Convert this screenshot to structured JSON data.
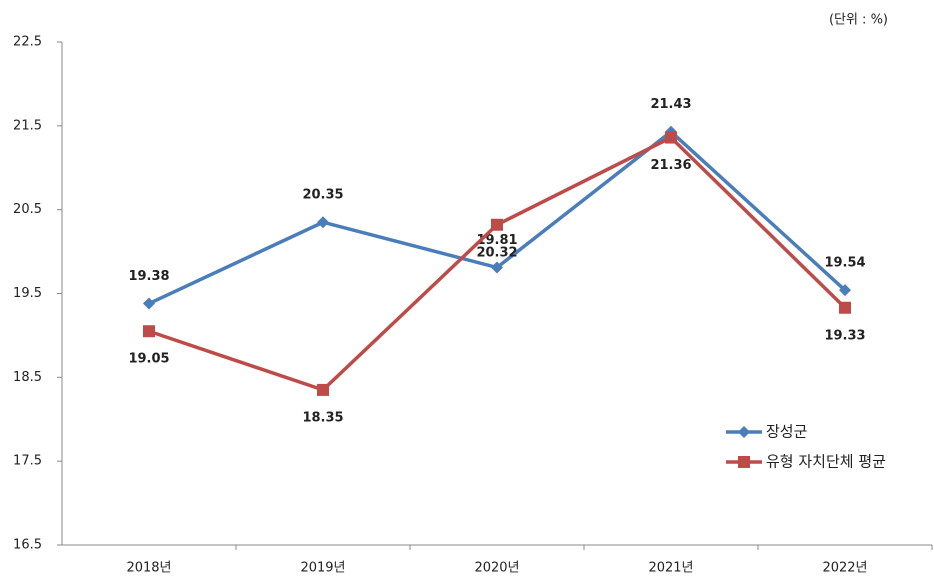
{
  "chart_data": {
    "type": "line",
    "unit": "(단위 : %)",
    "categories": [
      "2018년",
      "2019년",
      "2020년",
      "2021년",
      "2022년"
    ],
    "series": [
      {
        "name": "장성군",
        "color": "#4a7ebb",
        "marker": "diamond",
        "values": [
          19.38,
          20.35,
          19.81,
          21.43,
          19.54
        ]
      },
      {
        "name": "유형 자치단체 평균",
        "color": "#be4b48",
        "marker": "square",
        "values": [
          19.05,
          18.35,
          20.32,
          21.36,
          19.33
        ]
      }
    ],
    "ylim": [
      16.5,
      22.5
    ],
    "yticks": [
      16.5,
      17.5,
      18.5,
      19.5,
      20.5,
      21.5,
      22.5
    ],
    "grid": false,
    "legend": "right"
  }
}
